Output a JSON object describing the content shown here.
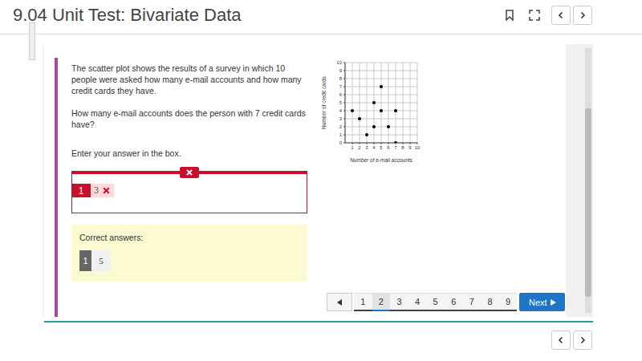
{
  "header": {
    "title": "9.04 Unit Test: Bivariate Data"
  },
  "question": {
    "paragraphs": [
      "The scatter plot shows the results of a survey in which 10 people were asked how many e-mail accounts and how many credit cards they have.",
      "How many e-mail accounts does the person with 7 credit cards have?"
    ],
    "prompt": "Enter your answer in the box."
  },
  "answer": {
    "number": "1",
    "value": "3"
  },
  "correct": {
    "title": "Correct answers:",
    "number": "1",
    "value": "5"
  },
  "pagination": {
    "pages": [
      "1",
      "2",
      "3",
      "4",
      "5",
      "6",
      "7",
      "8",
      "9"
    ],
    "current": "2",
    "next": "Next"
  },
  "chart_data": {
    "type": "scatter",
    "x_label": "Number of e-mail accounts",
    "y_label": "Number of credit cards",
    "x": [
      1,
      2,
      3,
      4,
      4,
      5,
      5,
      6,
      7,
      7
    ],
    "values": [
      4,
      3,
      1,
      5,
      2,
      7,
      4,
      2,
      4,
      0
    ],
    "color": "#000000",
    "marker": "circle",
    "xlim": [
      0,
      10
    ],
    "xticks": [
      1,
      2,
      3,
      4,
      5,
      6,
      7,
      8,
      9,
      10
    ],
    "ylim": [
      0,
      10
    ],
    "yticks": [
      0,
      1,
      2,
      3,
      4,
      5,
      6,
      7,
      8,
      9,
      10
    ],
    "grid": true
  }
}
